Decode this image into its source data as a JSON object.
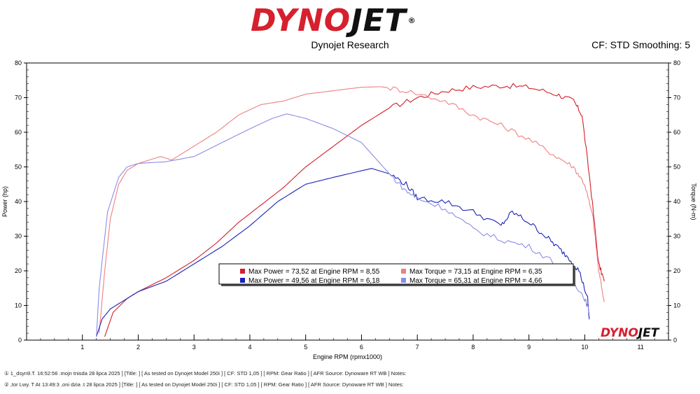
{
  "header": {
    "logo_part1": "DYNO",
    "logo_part2": "JET",
    "logo_reg": "®",
    "subtitle": "Dynojet Research",
    "cf_info": "CF: STD Smoothing: 5"
  },
  "footer": {
    "line1": "① 1_dsyn9.T. 16:52:56 .mojn tnisda 28 lipca 2025 ] [Title: ] [ As tested on Dynojet Model 250i ] [ CF: STD 1,05 ] [ RPM: Gear Ratio ] [ AFR Source: Dynoware RT WB ] Notes:",
    "line2": "② ,tor Lwy. T At 13:49:3 ,oni dzia .t 28 lipca 2025 ] [Title: ] [ As tested on Dynojet Model 250i ] [ CF: STD 1,05 ] [ RPM: Gear Ratio ] [ AFR Source: Dynoware RT WB ] Notes:"
  },
  "badge": {
    "part1": "DYNO",
    "part2": "JET"
  },
  "colors": {
    "power1": "#d21f2b",
    "torque1": "#ee8080",
    "power2": "#1c22b8",
    "torque2": "#8c8ce6"
  },
  "chart_data": {
    "type": "line",
    "title": "",
    "xlabel": "Engine RPM (rpmx1000)",
    "ylabel": "Power (hp)",
    "y2label": "Torque (N-m)",
    "xlim": [
      0,
      11.5
    ],
    "ylim": [
      0,
      80
    ],
    "y2lim": [
      0,
      80
    ],
    "x_ticks": [
      1,
      2,
      3,
      4,
      5,
      6,
      7,
      8,
      9,
      10,
      11
    ],
    "y_ticks": [
      0,
      10,
      20,
      30,
      40,
      50,
      60,
      70,
      80
    ],
    "grid": false,
    "legend_position": "center-bottom",
    "legend": [
      {
        "text": "Max Power = 73,52 at Engine RPM = 8,55",
        "color": "#d21f2b"
      },
      {
        "text": "Max Torque = 73,15 at Engine RPM = 6,35",
        "color": "#ee8080"
      },
      {
        "text": "Max Power = 49,56 at Engine RPM = 6,18",
        "color": "#1c22b8"
      },
      {
        "text": "Max Torque = 65,31 at Engine RPM = 4,66",
        "color": "#8c8ce6"
      }
    ],
    "series": [
      {
        "color": "#d21f2b",
        "axis": "left",
        "x": [
          1.4,
          1.55,
          1.8,
          2.0,
          2.5,
          3.0,
          3.4,
          3.8,
          4.2,
          4.6,
          5.0,
          5.5,
          6.0,
          6.5,
          7.0,
          7.5,
          8.0,
          8.55,
          9.0,
          9.5,
          9.8,
          9.95,
          10.1,
          10.25,
          10.35
        ],
        "y": [
          1,
          8,
          12,
          14,
          18,
          23,
          28,
          34,
          39,
          44,
          50,
          56,
          62,
          67,
          70,
          72,
          73,
          73.5,
          73,
          71,
          69,
          65,
          45,
          22,
          17
        ]
      },
      {
        "color": "#ee8080",
        "axis": "right",
        "x": [
          1.3,
          1.4,
          1.5,
          1.65,
          1.8,
          2.0,
          2.4,
          2.6,
          2.8,
          3.0,
          3.4,
          3.8,
          4.2,
          4.6,
          5.0,
          5.5,
          6.0,
          6.35,
          6.8,
          7.5,
          8.0,
          8.5,
          9.0,
          9.5,
          9.8,
          10.0,
          10.15,
          10.25,
          10.35
        ],
        "y": [
          2,
          20,
          35,
          45,
          49,
          51,
          53,
          52,
          54,
          56,
          60,
          65,
          68,
          69,
          71,
          72,
          73,
          73.15,
          72,
          69,
          65,
          62,
          58,
          53,
          50,
          45,
          35,
          20,
          11
        ]
      },
      {
        "color": "#1c22b8",
        "axis": "left",
        "x": [
          1.25,
          1.35,
          1.5,
          1.8,
          2.0,
          2.5,
          3.0,
          3.5,
          4.0,
          4.5,
          5.0,
          5.5,
          6.18,
          6.5,
          6.8,
          7.0,
          7.5,
          8.0,
          8.5,
          8.7,
          9.0,
          9.3,
          9.5,
          9.7,
          9.9,
          10.05,
          10.08
        ],
        "y": [
          1,
          6,
          9,
          12,
          14,
          17,
          22,
          27,
          33,
          40,
          45,
          47,
          49.56,
          48,
          45,
          41,
          40,
          37,
          33,
          37,
          34,
          30,
          27,
          24,
          20,
          12,
          6
        ]
      },
      {
        "color": "#8c8ce6",
        "axis": "right",
        "x": [
          1.25,
          1.3,
          1.45,
          1.65,
          1.8,
          2.0,
          2.5,
          3.0,
          3.5,
          4.0,
          4.4,
          4.66,
          5.0,
          5.5,
          6.0,
          6.5,
          6.8,
          7.0,
          7.5,
          8.0,
          8.5,
          9.0,
          9.5,
          9.8,
          10.0,
          10.08
        ],
        "y": [
          1,
          15,
          37,
          47,
          50,
          51,
          51.5,
          53,
          57,
          61,
          64,
          65.31,
          64,
          61,
          57,
          48,
          43,
          41,
          38,
          32,
          29,
          27,
          22,
          17,
          12,
          8
        ]
      }
    ]
  }
}
